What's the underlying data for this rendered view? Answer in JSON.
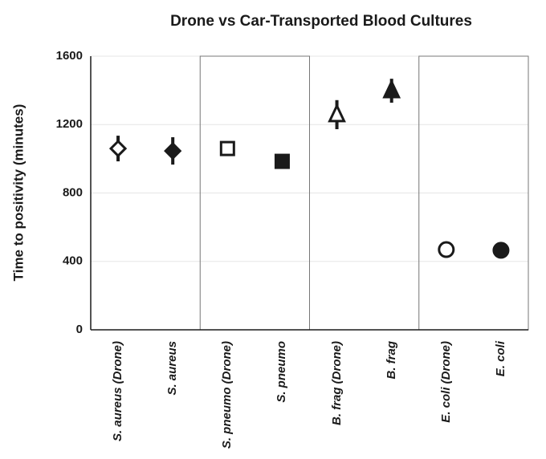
{
  "chart_data": {
    "type": "errorbar",
    "title": "Drone vs Car-Transported Blood Cultures",
    "y_label": "Time to positivity (minutes)",
    "categories": [
      "S. aureus (Drone)",
      "S. aureus",
      "S. pneumo (Drone)",
      "S. pneumo",
      "B. frag (Drone)",
      "B. frag",
      "E. coli (Drone)",
      "E. coli"
    ],
    "values": [
      1060,
      1046,
      1060,
      985,
      1258,
      1398,
      469,
      465
    ],
    "errors": [
      75,
      80,
      20,
      15,
      85,
      70,
      10,
      8
    ],
    "markers": [
      "diamond",
      "diamond",
      "square",
      "square",
      "triangle",
      "triangle",
      "circle",
      "circle"
    ],
    "filled": [
      false,
      true,
      false,
      true,
      false,
      true,
      false,
      true
    ],
    "color": "#1a1a1a",
    "ylim": [
      0,
      1600
    ],
    "yticks": [
      0,
      400,
      800,
      1200,
      1600
    ],
    "grid": true
  }
}
